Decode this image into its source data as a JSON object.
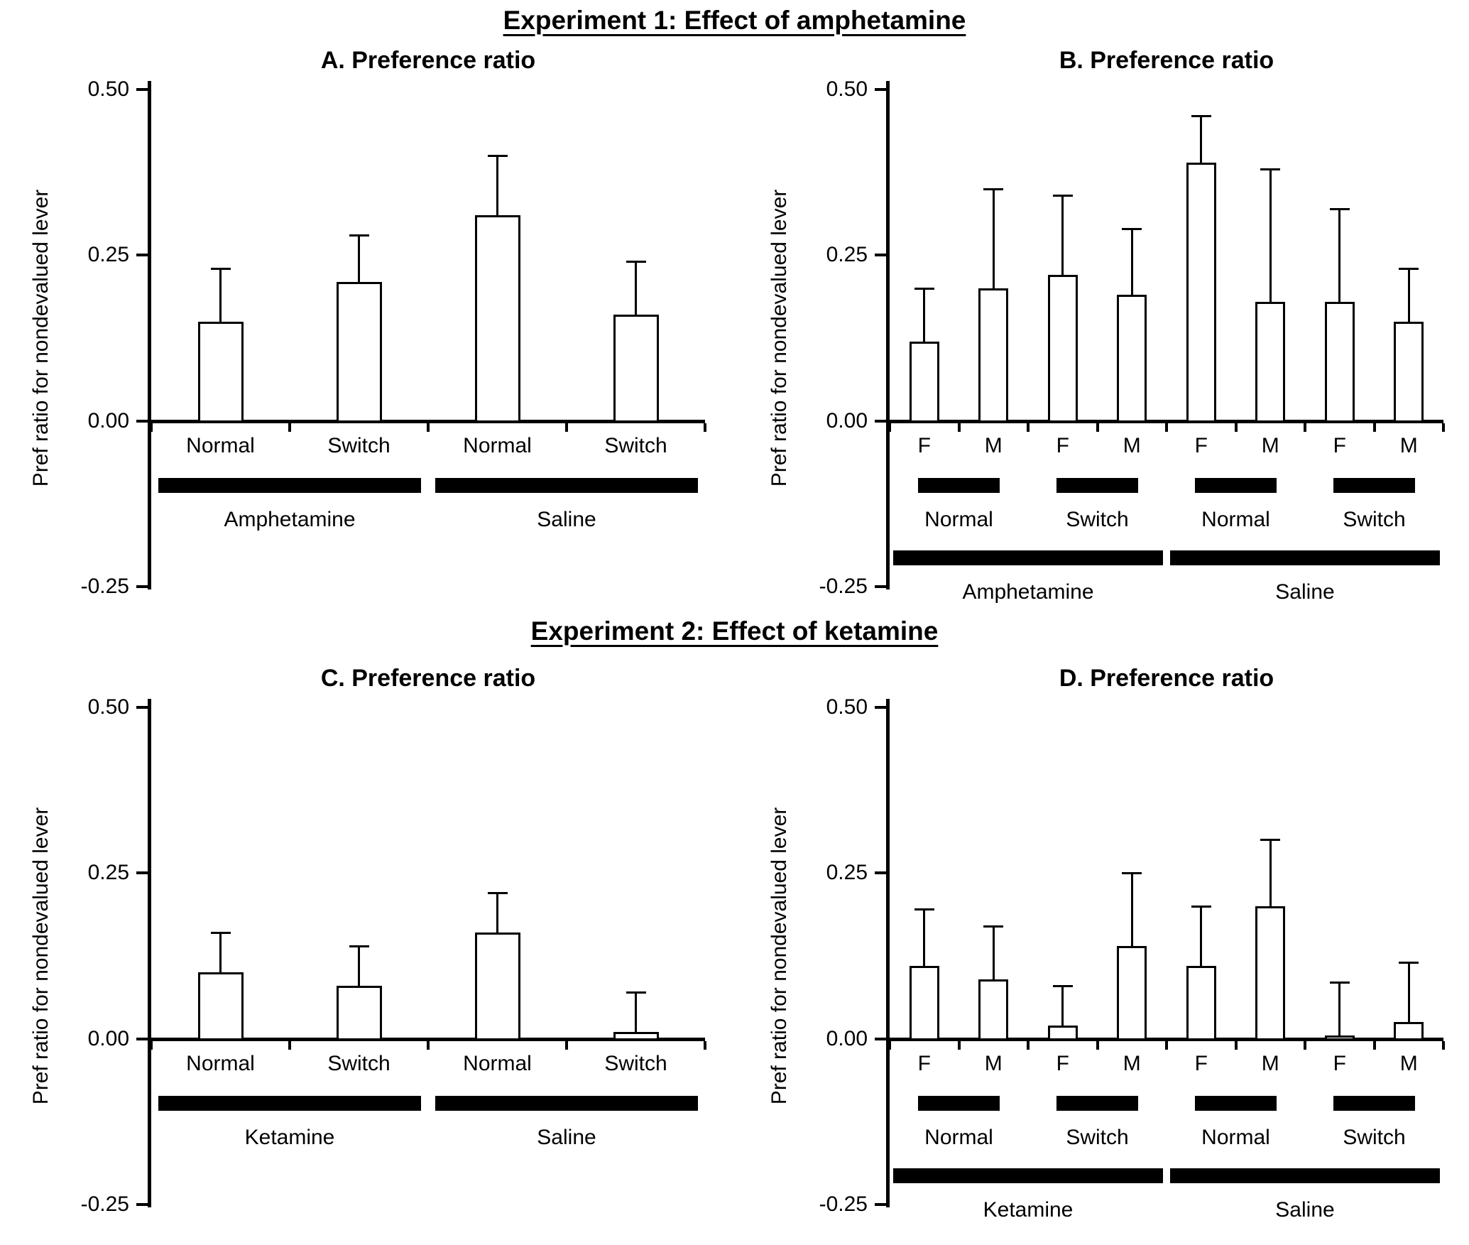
{
  "figure": {
    "experiment1_title": "Experiment 1: Effect of amphetamine",
    "experiment2_title": "Experiment 2: Effect of ketamine"
  },
  "chart_data": [
    {
      "panel": "A",
      "type": "bar",
      "title": "A. Preference ratio",
      "ylabel": "Pref ratio for nondevalued lever",
      "ylim": [
        -0.25,
        0.5
      ],
      "yticks": [
        "0.50",
        "0.25",
        "0.00",
        "-0.25"
      ],
      "ytick_values": [
        0.5,
        0.25,
        0.0,
        -0.25
      ],
      "grid": "off",
      "legend": "none",
      "error_direction": "up",
      "bar_fill": "#ffffff",
      "bar_border": "#000000",
      "categories": [
        "Normal",
        "Switch",
        "Normal",
        "Switch"
      ],
      "values": [
        0.15,
        0.21,
        0.31,
        0.16
      ],
      "errors": [
        0.08,
        0.07,
        0.09,
        0.08
      ],
      "groups": [
        {
          "level": 1,
          "label": "Amphetamine",
          "from": 0,
          "to": 1
        },
        {
          "level": 1,
          "label": "Saline",
          "from": 2,
          "to": 3
        }
      ]
    },
    {
      "panel": "B",
      "type": "bar",
      "title": "B. Preference ratio",
      "ylabel": "Pref ratio for nondevalued lever",
      "ylim": [
        -0.25,
        0.5
      ],
      "yticks": [
        "0.50",
        "0.25",
        "0.00",
        "-0.25"
      ],
      "ytick_values": [
        0.5,
        0.25,
        0.0,
        -0.25
      ],
      "grid": "off",
      "legend": "none",
      "error_direction": "up",
      "bar_fill": "#ffffff",
      "bar_border": "#000000",
      "categories": [
        "F",
        "M",
        "F",
        "M",
        "F",
        "M",
        "F",
        "M"
      ],
      "values": [
        0.12,
        0.2,
        0.22,
        0.19,
        0.39,
        0.18,
        0.18,
        0.15
      ],
      "errors": [
        0.08,
        0.15,
        0.12,
        0.1,
        0.07,
        0.2,
        0.14,
        0.08
      ],
      "groups": [
        {
          "level": 1,
          "label": "Normal",
          "from": 0,
          "to": 1
        },
        {
          "level": 1,
          "label": "Switch",
          "from": 2,
          "to": 3
        },
        {
          "level": 1,
          "label": "Normal",
          "from": 4,
          "to": 5
        },
        {
          "level": 1,
          "label": "Switch",
          "from": 6,
          "to": 7
        },
        {
          "level": 2,
          "label": "Amphetamine",
          "from": 0,
          "to": 3
        },
        {
          "level": 2,
          "label": "Saline",
          "from": 4,
          "to": 7
        }
      ]
    },
    {
      "panel": "C",
      "type": "bar",
      "title": "C. Preference ratio",
      "ylabel": "Pref ratio for nondevalued lever",
      "ylim": [
        -0.25,
        0.5
      ],
      "yticks": [
        "0.50",
        "0.25",
        "0.00",
        "-0.25"
      ],
      "ytick_values": [
        0.5,
        0.25,
        0.0,
        -0.25
      ],
      "grid": "off",
      "legend": "none",
      "error_direction": "up",
      "bar_fill": "#ffffff",
      "bar_border": "#000000",
      "categories": [
        "Normal",
        "Switch",
        "Normal",
        "Switch"
      ],
      "values": [
        0.1,
        0.08,
        0.16,
        0.01
      ],
      "errors": [
        0.06,
        0.06,
        0.06,
        0.06
      ],
      "groups": [
        {
          "level": 1,
          "label": "Ketamine",
          "from": 0,
          "to": 1
        },
        {
          "level": 1,
          "label": "Saline",
          "from": 2,
          "to": 3
        }
      ]
    },
    {
      "panel": "D",
      "type": "bar",
      "title": "D. Preference ratio",
      "ylabel": "Pref ratio for nondevalued lever",
      "ylim": [
        -0.25,
        0.5
      ],
      "yticks": [
        "0.50",
        "0.25",
        "0.00",
        "-0.25"
      ],
      "ytick_values": [
        0.5,
        0.25,
        0.0,
        -0.25
      ],
      "grid": "off",
      "legend": "none",
      "error_direction": "up",
      "bar_fill": "#ffffff",
      "bar_border": "#000000",
      "categories": [
        "F",
        "M",
        "F",
        "M",
        "F",
        "M",
        "F",
        "M"
      ],
      "values": [
        0.11,
        0.09,
        0.02,
        0.14,
        0.11,
        0.2,
        0.005,
        0.025
      ],
      "errors": [
        0.085,
        0.08,
        0.06,
        0.11,
        0.09,
        0.1,
        0.08,
        0.09
      ],
      "groups": [
        {
          "level": 1,
          "label": "Normal",
          "from": 0,
          "to": 1
        },
        {
          "level": 1,
          "label": "Switch",
          "from": 2,
          "to": 3
        },
        {
          "level": 1,
          "label": "Normal",
          "from": 4,
          "to": 5
        },
        {
          "level": 1,
          "label": "Switch",
          "from": 6,
          "to": 7
        },
        {
          "level": 2,
          "label": "Ketamine",
          "from": 0,
          "to": 3
        },
        {
          "level": 2,
          "label": "Saline",
          "from": 4,
          "to": 7
        }
      ]
    }
  ]
}
